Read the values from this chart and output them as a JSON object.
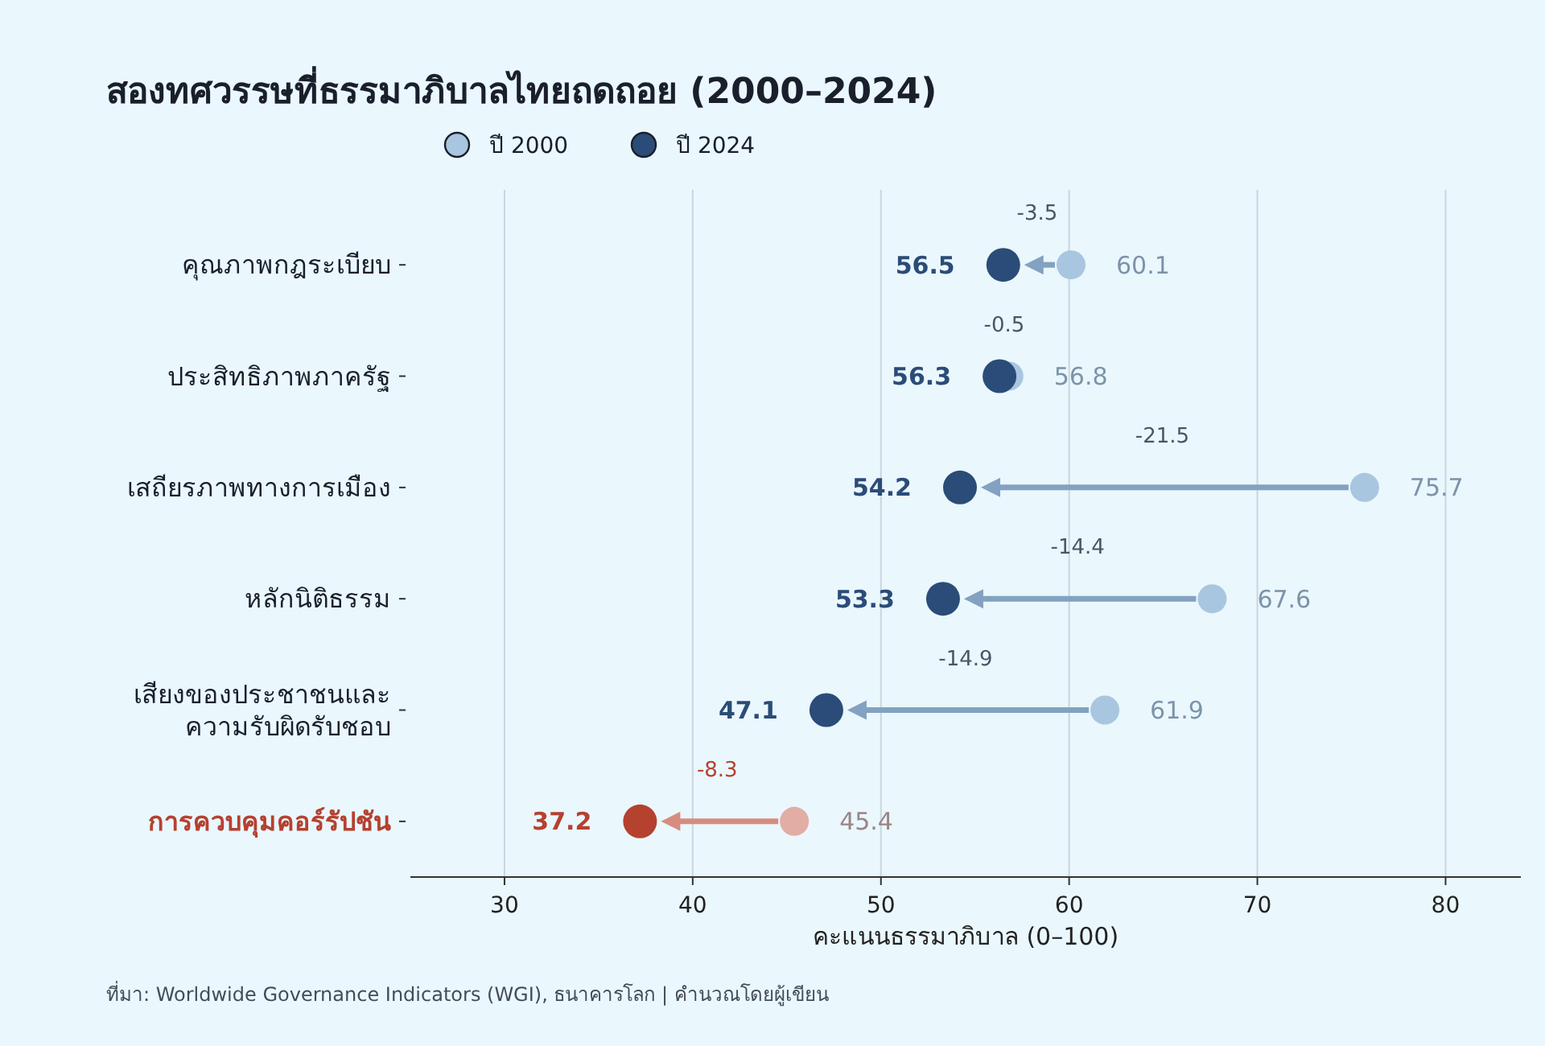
{
  "chart_data": {
    "type": "scatter",
    "orientation": "horizontal",
    "title": "สองทศวรรษที่ธรรมาภิบาลไทยถดถอย (2000–2024)",
    "xlabel": "คะแนนธรรมาภิบาล (0–100)",
    "categories": [
      "คุณภาพกฎระเบียบ",
      "ประสิทธิภาพภาครัฐ",
      "เสถียรภาพทางการเมือง",
      "หลักนิติธรรม",
      "เสียงของประชาชนและ\nความรับผิดรับชอบ",
      "การควบคุมคอร์รัปชัน"
    ],
    "series": [
      {
        "name": "ปี 2000",
        "color": "#a9c6e0",
        "colors": [
          "#a9c6e0",
          "#a9c6e0",
          "#a9c6e0",
          "#a9c6e0",
          "#a9c6e0",
          "#e2ada3"
        ],
        "values": [
          60.1,
          56.8,
          75.7,
          67.6,
          61.9,
          45.4
        ]
      },
      {
        "name": "ปี 2024",
        "color": "#2b4c78",
        "colors": [
          "#2b4c78",
          "#2b4c78",
          "#2b4c78",
          "#2b4c78",
          "#2b4c78",
          "#b5412f"
        ],
        "values": [
          56.5,
          56.3,
          54.2,
          53.3,
          47.1,
          37.2
        ]
      }
    ],
    "xlim": [
      25,
      84
    ],
    "xticks": [
      30,
      40,
      50,
      60,
      70,
      80
    ],
    "grid": "x",
    "legend": "top",
    "marker": "circle",
    "data_labels": true,
    "annotations": [
      "-3.5",
      "-0.5",
      "-21.5",
      "-14.4",
      "-14.9",
      "-8.3",
      "ที่มา: Worldwide Governance Indicators (WGI), ธนาคารโลก | คำนวณโดยผู้เขียน"
    ]
  }
}
